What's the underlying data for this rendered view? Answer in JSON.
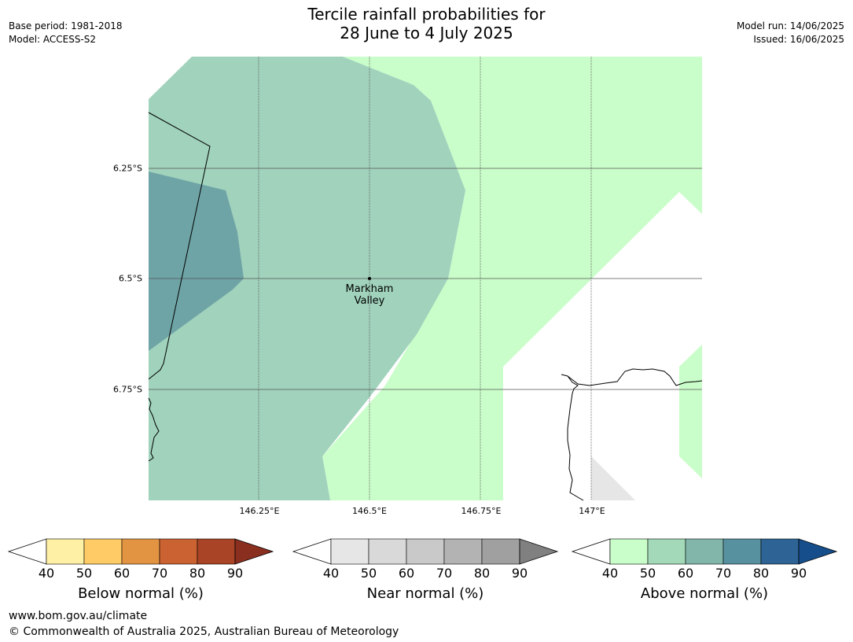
{
  "header": {
    "title_line1": "Tercile rainfall probabilities for",
    "title_line2": "28 June to 4 July 2025",
    "base_period": "Base period: 1981-2018",
    "model": "Model: ACCESS-S2",
    "model_run": "Model run: 14/06/2025",
    "issued": "Issued: 16/06/2025"
  },
  "map": {
    "lat_labels": [
      "6.25°S",
      "6.5°S",
      "6.75°S"
    ],
    "lon_labels": [
      "146.25°E",
      "146.5°E",
      "146.75°E",
      "147°E"
    ],
    "place_label_line1": "Markham",
    "place_label_line2": "Valley",
    "colors": {
      "above_50": "#c9fdc9",
      "above_60": "#a0d2bc",
      "above_70": "#6fa4a6",
      "near_40": "#e6e6e6",
      "grid": "#555555",
      "coast": "#000000"
    }
  },
  "legends": [
    {
      "title": "Below normal (%)",
      "ticks": [
        "40",
        "50",
        "60",
        "70",
        "80",
        "90"
      ],
      "colors": [
        "#fef0a5",
        "#fecb66",
        "#e29443",
        "#cb6232",
        "#a94426",
        "#8a2e1f"
      ]
    },
    {
      "title": "Near normal (%)",
      "ticks": [
        "40",
        "50",
        "60",
        "70",
        "80",
        "90"
      ],
      "colors": [
        "#e6e6e6",
        "#d9d9d9",
        "#c9c9c9",
        "#b3b3b3",
        "#a0a0a0",
        "#808080"
      ]
    },
    {
      "title": "Above normal (%)",
      "ticks": [
        "40",
        "50",
        "60",
        "70",
        "80",
        "90"
      ],
      "colors": [
        "#c9fdc9",
        "#a3d9b8",
        "#82b6ab",
        "#5791a0",
        "#2e6495",
        "#154e8a"
      ]
    }
  ],
  "footer": {
    "url": "www.bom.gov.au/climate",
    "copyright": "© Commonwealth of Australia 2025, Australian Bureau of Meteorology"
  }
}
